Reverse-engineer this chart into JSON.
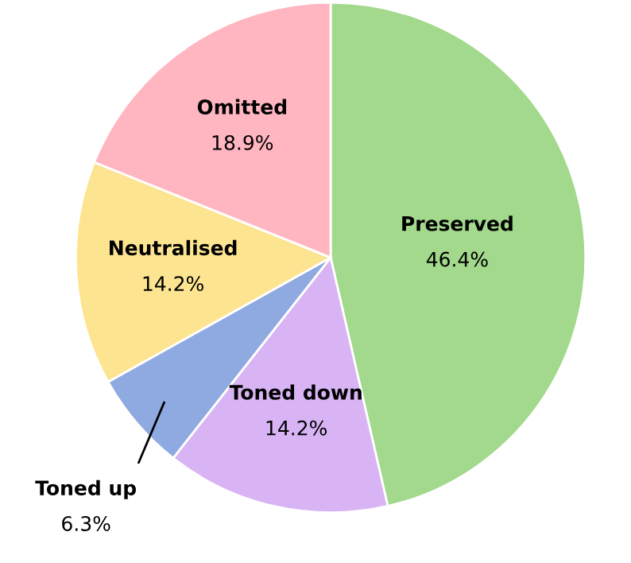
{
  "chart_data": {
    "type": "pie",
    "categories": [
      "Preserved",
      "Toned down",
      "Toned up",
      "Neutralised",
      "Omitted"
    ],
    "values": [
      46.4,
      14.2,
      6.3,
      14.2,
      18.9
    ],
    "colors": [
      "#a3d98c",
      "#d9b4f5",
      "#8faae0",
      "#fde491",
      "#ffb6c1"
    ],
    "value_labels": [
      "46.4%",
      "14.2%",
      "6.3%",
      "14.2%",
      "18.9%"
    ],
    "legend": false
  }
}
